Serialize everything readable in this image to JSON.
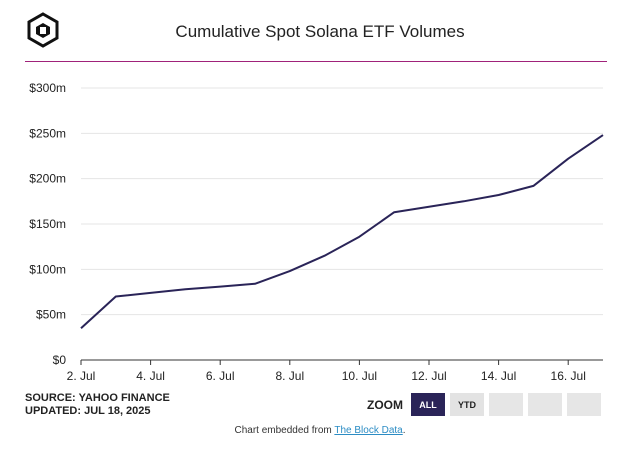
{
  "title": "Cumulative Spot Solana ETF Volumes",
  "footer": {
    "source": "SOURCE: YAHOO FINANCE",
    "updated": "UPDATED: JUL 18, 2025"
  },
  "zoom": {
    "label": "ZOOM",
    "buttons": [
      "ALL",
      "YTD"
    ],
    "active": "ALL"
  },
  "embed": {
    "prefix": "Chart embedded from ",
    "link": "The Block Data",
    "suffix": "."
  },
  "colors": {
    "line": "#2a2458",
    "accent_rule": "#a0227a",
    "active_button": "#2a2458"
  },
  "chart_data": {
    "type": "line",
    "title": "Cumulative Spot Solana ETF Volumes",
    "xlabel": "",
    "ylabel": "",
    "x": [
      "2025-07-02",
      "2025-07-03",
      "2025-07-04",
      "2025-07-05",
      "2025-07-06",
      "2025-07-07",
      "2025-07-08",
      "2025-07-09",
      "2025-07-10",
      "2025-07-11",
      "2025-07-12",
      "2025-07-13",
      "2025-07-14",
      "2025-07-15",
      "2025-07-16",
      "2025-07-17"
    ],
    "series": [
      {
        "values": [
          35,
          70,
          74,
          78,
          81,
          84,
          98,
          115,
          136,
          163,
          169,
          175,
          182,
          192,
          222,
          248
        ]
      }
    ],
    "y_ticks": [
      "$0",
      "$50m",
      "$100m",
      "$150m",
      "$200m",
      "$250m",
      "$300m"
    ],
    "y_tick_values": [
      0,
      50,
      100,
      150,
      200,
      250,
      300
    ],
    "x_ticks": [
      "2. Jul",
      "4. Jul",
      "6. Jul",
      "8. Jul",
      "10. Jul",
      "12. Jul",
      "14. Jul",
      "16. Jul"
    ],
    "x_tick_dates": [
      "2025-07-02",
      "2025-07-04",
      "2025-07-06",
      "2025-07-08",
      "2025-07-10",
      "2025-07-12",
      "2025-07-14",
      "2025-07-16"
    ],
    "ylim": [
      0,
      300
    ],
    "xlim": [
      "2025-07-02",
      "2025-07-17"
    ],
    "grid": true,
    "legend": "none"
  }
}
